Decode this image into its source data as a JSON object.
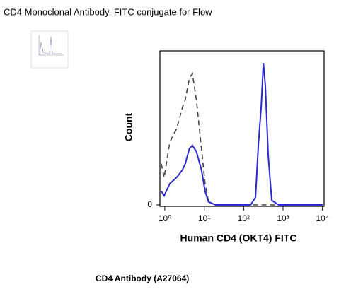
{
  "header": {
    "title": "CD4 Monoclonal Antibody, FITC conjugate for Flow"
  },
  "caption": "CD4 Antibody (A27064)",
  "chart_data": {
    "type": "line",
    "x_label": "Human CD4 (OKT4) FITC",
    "y_label": "Count",
    "log_x": true,
    "xlim": [
      0.75,
      11000
    ],
    "xticks": [
      {
        "value": 1,
        "label": "10⁰"
      },
      {
        "value": 10,
        "label": "10¹"
      },
      {
        "value": 100,
        "label": "10²"
      },
      {
        "value": 1000,
        "label": "10³"
      },
      {
        "value": 10000,
        "label": "10⁴"
      }
    ],
    "ylim": [
      0,
      100
    ],
    "yticks": [
      0
    ],
    "x": [
      0.81,
      0.96,
      1.33,
      2.0,
      2.8,
      3.3,
      4.2,
      5.0,
      6.3,
      8.5,
      10.5,
      12.9,
      19.4,
      150,
      200,
      237,
      279,
      316,
      355,
      422,
      515,
      780,
      10000
    ],
    "series": [
      {
        "color": "#444444",
        "dashed": true,
        "values": [
          27,
          18,
          41,
          50,
          64,
          69,
          83,
          86,
          69,
          37,
          14,
          2,
          0,
          0,
          0,
          0,
          0,
          0,
          0,
          0,
          0,
          0,
          0
        ]
      },
      {
        "color": "#2a2ad0",
        "dashed": false,
        "values": [
          9,
          6,
          14,
          18,
          23,
          27,
          37,
          39,
          35,
          23,
          9,
          2,
          0,
          0,
          5,
          40,
          64,
          93,
          78,
          32,
          3,
          0,
          0
        ]
      }
    ]
  }
}
